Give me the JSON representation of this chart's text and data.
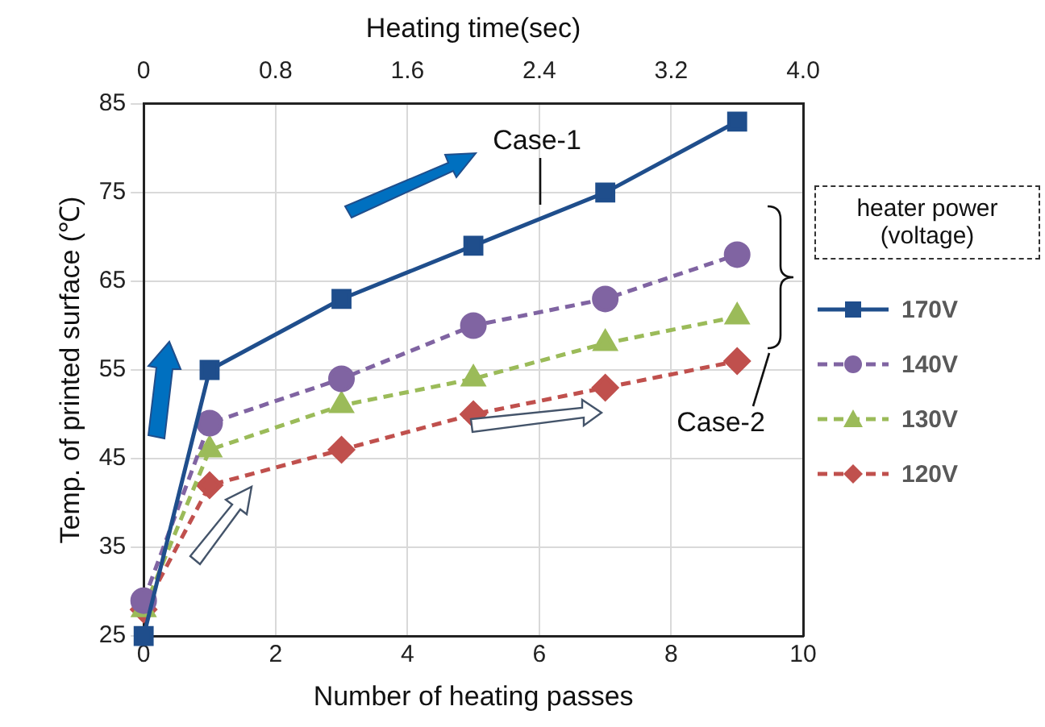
{
  "chart_data": {
    "type": "line",
    "xlabel": "Number of heating passes",
    "ylabel": "Temp. of printed surface (℃)",
    "x2label": "Heating time(sec)",
    "legend_title": "heater power (voltage)",
    "x": [
      0,
      1,
      3,
      5,
      7,
      9
    ],
    "series": [
      {
        "name": "170V",
        "color": "#1f4e8c",
        "values": [
          25,
          55,
          63,
          69,
          75,
          83
        ],
        "marker": "square",
        "line_style": "solid"
      },
      {
        "name": "140V",
        "color": "#8064a2",
        "values": [
          29,
          49,
          54,
          60,
          63,
          68
        ],
        "marker": "circle",
        "line_style": "dashed"
      },
      {
        "name": "130V",
        "color": "#9bbb59",
        "values": [
          28,
          46,
          51,
          54,
          58,
          61
        ],
        "marker": "triangle",
        "line_style": "dashed"
      },
      {
        "name": "120V",
        "color": "#c0504d",
        "values": [
          28,
          42,
          46,
          50,
          53,
          56
        ],
        "marker": "diamond",
        "line_style": "dashed"
      }
    ],
    "xlim": [
      0,
      10
    ],
    "xticks": [
      0,
      2,
      4,
      6,
      8,
      10
    ],
    "x2lim": [
      0,
      4
    ],
    "x2ticks": [
      0,
      0.8,
      1.6,
      2.4,
      3.2,
      {
        "value": 4,
        "label": "4.0"
      }
    ],
    "ylim": [
      25,
      85
    ],
    "yticks": [
      25,
      35,
      45,
      55,
      65,
      75,
      85
    ],
    "grid": true,
    "legend": "right",
    "annotations": [
      "Case-1",
      "Case-2"
    ]
  }
}
